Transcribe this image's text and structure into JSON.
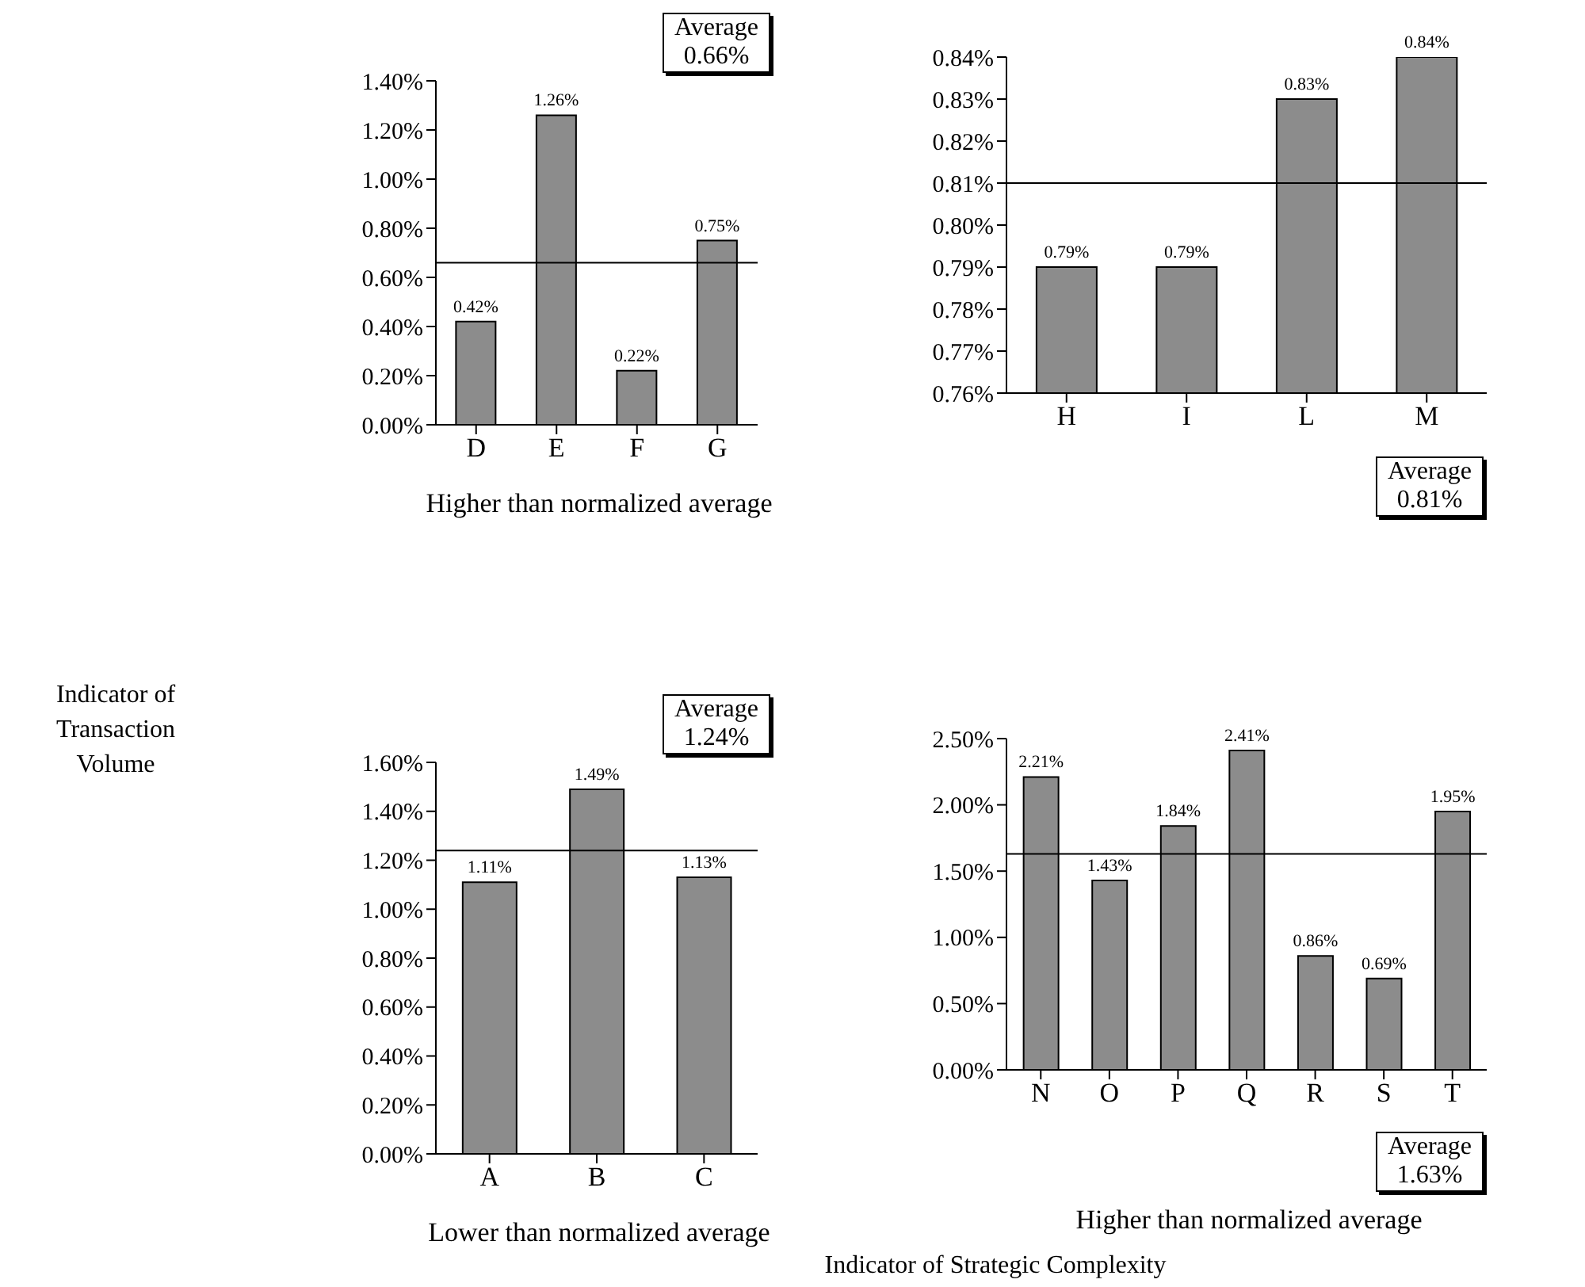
{
  "chart_data": [
    {
      "type": "bar",
      "xlabel": "Higher than normalized average",
      "categories": [
        "D",
        "E",
        "F",
        "G"
      ],
      "values": [
        0.42,
        1.26,
        0.22,
        0.75
      ],
      "value_labels": [
        "0.42%",
        "1.26%",
        "0.22%",
        "0.75%"
      ],
      "color": "#8c8c8c",
      "ylim": [
        0,
        1.4
      ],
      "yticks": [
        {
          "value": 0,
          "label": "0.00%"
        },
        {
          "value": 0.2,
          "label": "0.20%"
        },
        {
          "value": 0.4,
          "label": "0.40%"
        },
        {
          "value": 0.6,
          "label": "0.60%"
        },
        {
          "value": 0.8,
          "label": "0.80%"
        },
        {
          "value": 1.0,
          "label": "1.00%"
        },
        {
          "value": 1.2,
          "label": "1.20%"
        },
        {
          "value": 1.4,
          "label": "1.40%"
        }
      ],
      "ref_lines": [
        {
          "axis": "y",
          "value": 0.66,
          "label": "Average 0.66%"
        }
      ],
      "annotations": [
        "Indicator of Transaction Volume"
      ]
    },
    {
      "type": "bar",
      "categories": [
        "H",
        "I",
        "L",
        "M"
      ],
      "values": [
        0.79,
        0.79,
        0.83,
        0.84
      ],
      "value_labels": [
        "0.79%",
        "0.79%",
        "0.83%",
        "0.84%"
      ],
      "color": "#8c8c8c",
      "ylim": [
        0.76,
        0.84
      ],
      "yticks": [
        {
          "value": 0.76,
          "label": "0.76%"
        },
        {
          "value": 0.77,
          "label": "0.77%"
        },
        {
          "value": 0.78,
          "label": "0.78%"
        },
        {
          "value": 0.79,
          "label": "0.79%"
        },
        {
          "value": 0.8,
          "label": "0.80%"
        },
        {
          "value": 0.81,
          "label": "0.81%"
        },
        {
          "value": 0.82,
          "label": "0.82%"
        },
        {
          "value": 0.83,
          "label": "0.83%"
        },
        {
          "value": 0.84,
          "label": "0.84%"
        }
      ],
      "ref_lines": [
        {
          "axis": "y",
          "value": 0.81,
          "label": "Average 0.81%"
        }
      ]
    },
    {
      "type": "bar",
      "xlabel": "Lower than normalized average",
      "categories": [
        "A",
        "B",
        "C"
      ],
      "values": [
        1.11,
        1.49,
        1.13
      ],
      "value_labels": [
        "1.11%",
        "1.49%",
        "1.13%"
      ],
      "color": "#8c8c8c",
      "ylim": [
        0,
        1.6
      ],
      "yticks": [
        {
          "value": 0,
          "label": "0.00%"
        },
        {
          "value": 0.2,
          "label": "0.20%"
        },
        {
          "value": 0.4,
          "label": "0.40%"
        },
        {
          "value": 0.6,
          "label": "0.60%"
        },
        {
          "value": 0.8,
          "label": "0.80%"
        },
        {
          "value": 1.0,
          "label": "1.00%"
        },
        {
          "value": 1.2,
          "label": "1.20%"
        },
        {
          "value": 1.4,
          "label": "1.40%"
        },
        {
          "value": 1.6,
          "label": "1.60%"
        }
      ],
      "ref_lines": [
        {
          "axis": "y",
          "value": 1.24,
          "label": "Average 1.24%"
        }
      ]
    },
    {
      "type": "bar",
      "xlabel": "Higher than normalized average",
      "categories": [
        "N",
        "O",
        "P",
        "Q",
        "R",
        "S",
        "T"
      ],
      "values": [
        2.21,
        1.43,
        1.84,
        2.41,
        0.86,
        0.69,
        1.95
      ],
      "value_labels": [
        "2.21%",
        "1.43%",
        "1.84%",
        "2.41%",
        "0.86%",
        "0.69%",
        "1.95%"
      ],
      "color": "#8c8c8c",
      "ylim": [
        0,
        2.5
      ],
      "yticks": [
        {
          "value": 0,
          "label": "0.00%"
        },
        {
          "value": 0.5,
          "label": "0.50%"
        },
        {
          "value": 1.0,
          "label": "1.00%"
        },
        {
          "value": 1.5,
          "label": "1.50%"
        },
        {
          "value": 2.0,
          "label": "2.00%"
        },
        {
          "value": 2.5,
          "label": "2.50%"
        }
      ],
      "ref_lines": [
        {
          "axis": "y",
          "value": 1.63,
          "label": "Average 1.63%"
        }
      ],
      "annotations": [
        "Indicator of Strategic Complexity"
      ]
    }
  ]
}
